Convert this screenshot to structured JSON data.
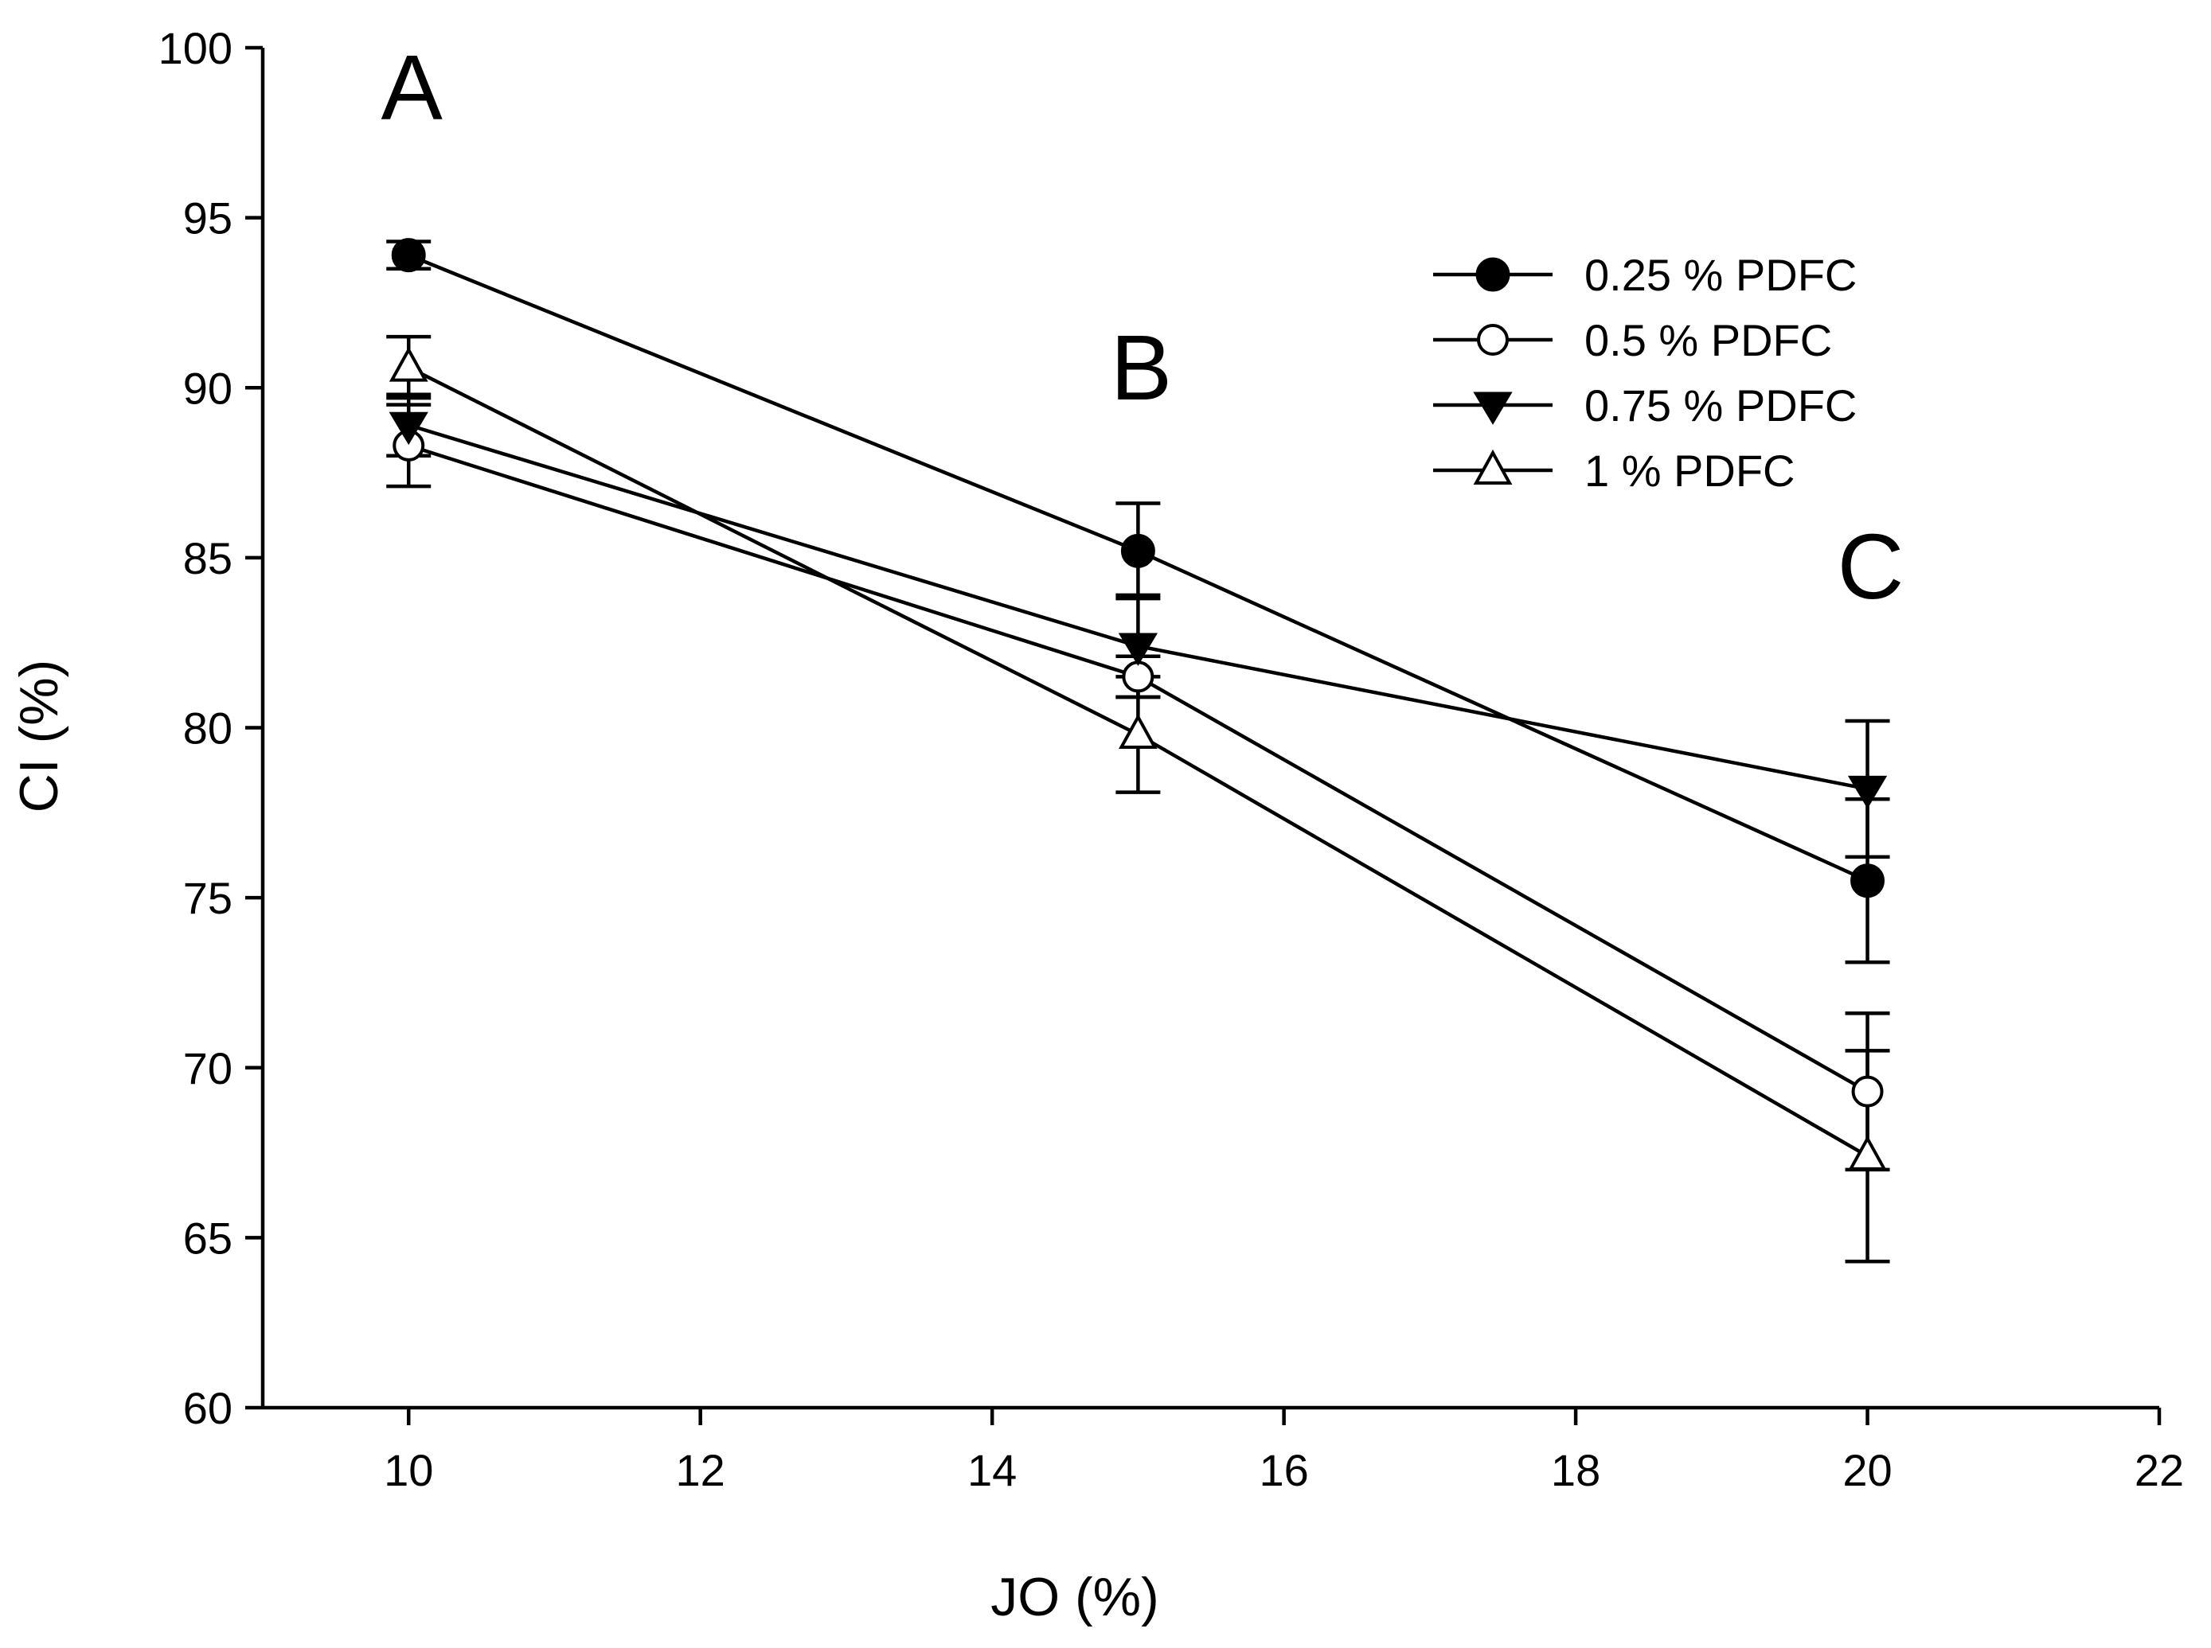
{
  "chart_data": {
    "type": "line",
    "title": "",
    "xlabel": "JO (%)",
    "ylabel": "CI (%)",
    "xlim": [
      9,
      22
    ],
    "ylim": [
      60,
      100
    ],
    "xticks": [
      10,
      12,
      14,
      16,
      18,
      20,
      22
    ],
    "yticks": [
      60,
      65,
      70,
      75,
      80,
      85,
      90,
      95,
      100
    ],
    "x": [
      10,
      15,
      20
    ],
    "grid": false,
    "legend_position": "top-right",
    "series": [
      {
        "name": "0.25 % PDFC",
        "marker": "filled-circle",
        "values": [
          93.9,
          85.2,
          75.5
        ],
        "errors": [
          0.4,
          1.4,
          2.4
        ]
      },
      {
        "name": "0.5 % PDFC",
        "marker": "open-circle",
        "values": [
          88.3,
          81.5,
          69.3
        ],
        "errors": [
          1.2,
          0.6,
          2.3
        ]
      },
      {
        "name": "0.75 % PDFC",
        "marker": "filled-triangle-down",
        "values": [
          88.9,
          82.4,
          78.2
        ],
        "errors": [
          0.9,
          1.5,
          2.0
        ]
      },
      {
        "name": "1 % PDFC",
        "marker": "open-triangle-up",
        "values": [
          90.6,
          79.8,
          67.4
        ],
        "errors": [
          0.9,
          1.7,
          3.1
        ]
      }
    ],
    "annotations": [
      {
        "text": "A",
        "x": 10
      },
      {
        "text": "B",
        "x": 15
      },
      {
        "text": "C",
        "x": 20
      }
    ]
  }
}
